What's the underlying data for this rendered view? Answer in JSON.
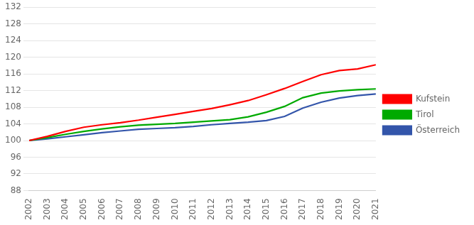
{
  "chart_data": {
    "type": "line",
    "x": [
      2002,
      2003,
      2004,
      2005,
      2006,
      2007,
      2008,
      2009,
      2010,
      2011,
      2012,
      2013,
      2014,
      2015,
      2016,
      2017,
      2018,
      2019,
      2020,
      2021
    ],
    "series": [
      {
        "name": "Kufstein",
        "color": "#ff0000",
        "values": [
          100.0,
          101.0,
          102.2,
          103.2,
          103.8,
          104.3,
          104.9,
          105.6,
          106.3,
          107.0,
          107.7,
          108.6,
          109.6,
          111.0,
          112.5,
          114.2,
          115.8,
          116.8,
          117.2,
          118.2
        ]
      },
      {
        "name": "Tirol",
        "color": "#00aa00",
        "values": [
          100.0,
          100.7,
          101.5,
          102.2,
          102.8,
          103.3,
          103.7,
          103.9,
          104.1,
          104.4,
          104.7,
          105.0,
          105.7,
          106.8,
          108.2,
          110.3,
          111.4,
          111.9,
          112.2,
          112.4
        ]
      },
      {
        "name": "Österreich",
        "color": "#3355aa",
        "values": [
          100.0,
          100.4,
          100.9,
          101.4,
          101.9,
          102.3,
          102.7,
          102.9,
          103.1,
          103.4,
          103.8,
          104.1,
          104.4,
          104.8,
          105.8,
          107.8,
          109.2,
          110.2,
          110.8,
          111.2
        ]
      }
    ],
    "xlim": [
      2002,
      2021
    ],
    "xticks": [
      2002,
      2003,
      2004,
      2005,
      2006,
      2007,
      2008,
      2009,
      2010,
      2011,
      2012,
      2013,
      2014,
      2015,
      2016,
      2017,
      2018,
      2019,
      2020,
      2021
    ],
    "ylim": [
      88,
      132
    ],
    "yticks": [
      88,
      92,
      96,
      100,
      104,
      108,
      112,
      116,
      120,
      124,
      128,
      132
    ],
    "grid": true,
    "legend": "right"
  }
}
